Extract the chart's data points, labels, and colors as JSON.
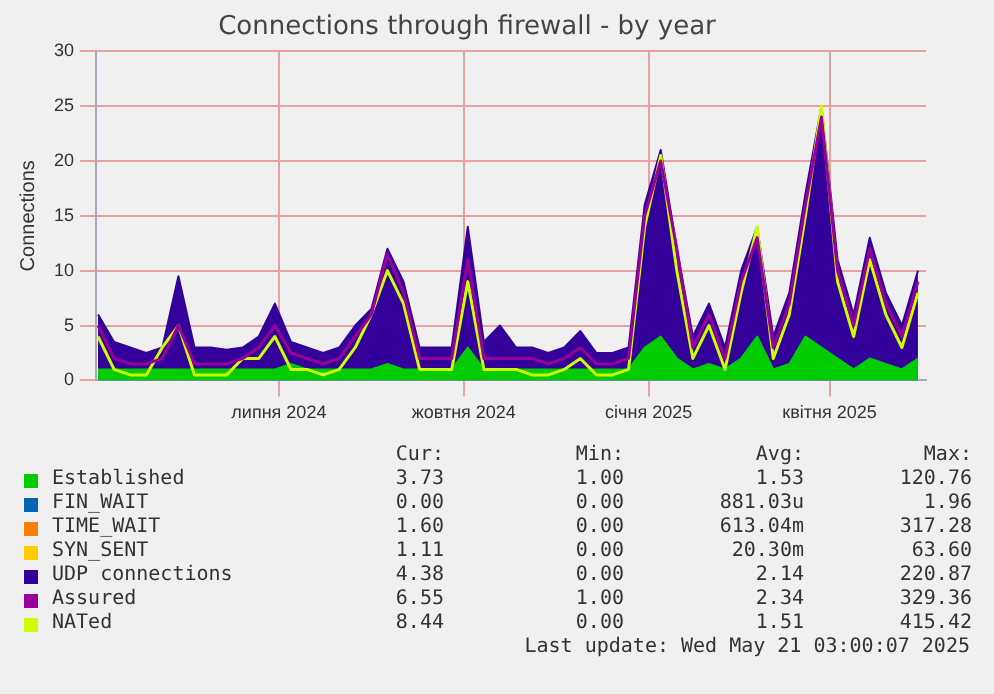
{
  "chart_data": {
    "type": "area",
    "title": "Connections through firewall - by year",
    "ylabel": "Connections",
    "x": [
      "2024-04-02",
      "2024-04-10",
      "2024-04-18",
      "2024-04-26",
      "2024-05-04",
      "2024-05-12",
      "2024-05-20",
      "2024-05-28",
      "2024-06-05",
      "2024-06-13",
      "2024-06-21",
      "2024-06-29",
      "2024-07-07",
      "2024-07-15",
      "2024-07-23",
      "2024-07-31",
      "2024-08-08",
      "2024-08-16",
      "2024-08-24",
      "2024-09-01",
      "2024-09-09",
      "2024-09-17",
      "2024-09-25",
      "2024-10-03",
      "2024-10-11",
      "2024-10-19",
      "2024-10-27",
      "2024-11-04",
      "2024-11-12",
      "2024-11-20",
      "2024-11-28",
      "2024-12-06",
      "2024-12-14",
      "2024-12-22",
      "2024-12-30",
      "2025-01-07",
      "2025-01-15",
      "2025-01-23",
      "2025-01-31",
      "2025-02-08",
      "2025-02-16",
      "2025-02-24",
      "2025-03-04",
      "2025-03-12",
      "2025-03-20",
      "2025-03-28",
      "2025-04-05",
      "2025-04-13",
      "2025-04-21",
      "2025-04-29",
      "2025-05-07",
      "2025-05-15"
    ],
    "series": [
      {
        "name": "Established",
        "color": "#00cc00",
        "values": [
          1,
          1,
          1,
          1,
          1,
          1,
          1,
          1,
          1,
          1,
          1,
          1,
          1.5,
          1,
          1,
          1,
          1,
          1,
          1.5,
          1,
          1,
          1,
          1,
          3,
          1,
          1,
          1,
          1,
          1,
          1,
          1,
          1,
          1,
          1,
          3,
          4,
          2,
          1,
          1.5,
          1,
          2,
          4,
          1,
          1.5,
          4,
          3,
          2,
          1,
          2,
          1.5,
          1,
          2
        ]
      },
      {
        "name": "FIN_WAIT",
        "color": "#0066b3",
        "values": [
          null,
          null,
          null,
          null,
          null,
          null,
          null,
          null,
          null,
          null,
          null,
          null,
          null,
          null,
          null,
          null,
          null,
          null,
          null,
          null,
          null,
          null,
          null,
          null,
          null,
          null,
          null,
          null,
          null,
          null,
          null,
          null,
          null,
          null,
          null,
          null,
          null,
          null,
          null,
          null,
          null,
          null,
          null,
          null,
          null,
          null,
          null,
          null,
          null,
          null,
          null,
          null
        ]
      },
      {
        "name": "TIME_WAIT",
        "color": "#ff8000",
        "values": [
          null,
          null,
          null,
          null,
          null,
          null,
          null,
          null,
          null,
          null,
          null,
          null,
          null,
          null,
          null,
          null,
          null,
          null,
          null,
          null,
          null,
          null,
          null,
          null,
          null,
          null,
          null,
          null,
          null,
          null,
          null,
          null,
          null,
          null,
          null,
          null,
          null,
          null,
          null,
          null,
          null,
          null,
          null,
          null,
          null,
          null,
          null,
          null,
          null,
          null,
          null,
          null
        ]
      },
      {
        "name": "SYN_SENT",
        "color": "#ffcc00",
        "values": [
          null,
          null,
          null,
          null,
          null,
          null,
          null,
          null,
          null,
          null,
          null,
          null,
          null,
          null,
          null,
          null,
          null,
          null,
          null,
          null,
          null,
          null,
          null,
          null,
          null,
          null,
          null,
          null,
          null,
          null,
          null,
          null,
          null,
          null,
          null,
          null,
          null,
          null,
          null,
          null,
          null,
          null,
          null,
          null,
          null,
          null,
          null,
          null,
          null,
          null,
          null,
          null
        ]
      },
      {
        "name": "UDP connections",
        "color": "#330099",
        "values": [
          6,
          3.5,
          3,
          2.5,
          3,
          9.5,
          3,
          3,
          2.8,
          3,
          4,
          7,
          3.5,
          3,
          2.5,
          3,
          5,
          6.5,
          12,
          9,
          3,
          3,
          3,
          14,
          3.5,
          5,
          3,
          3,
          2.5,
          3,
          4.5,
          2.5,
          2.5,
          3,
          16,
          21,
          12,
          4,
          7,
          3,
          10,
          14,
          4,
          8,
          17,
          25,
          11,
          6,
          13,
          8,
          5,
          10
        ]
      },
      {
        "name": "Assured",
        "color": "#990099",
        "type": "line",
        "values": [
          5,
          2,
          1.5,
          1.5,
          2,
          5,
          1.5,
          1.5,
          1.5,
          2,
          3,
          5,
          2.5,
          2,
          1.5,
          2,
          4,
          6,
          11.5,
          8,
          2,
          2,
          2,
          11,
          2,
          2,
          2,
          2,
          1.5,
          2,
          3,
          1.5,
          1.5,
          2,
          15,
          20,
          12,
          3,
          6,
          2,
          9,
          13,
          3,
          7,
          16,
          24,
          10,
          5,
          12,
          7,
          4,
          9
        ]
      },
      {
        "name": "NATed",
        "color": "#ccff00",
        "type": "line",
        "values": [
          4,
          1,
          0.5,
          0.5,
          3,
          5,
          0.5,
          0.5,
          0.5,
          2,
          2,
          4,
          1,
          1,
          0.5,
          1,
          3,
          6,
          10,
          7,
          1,
          1,
          1,
          9,
          1,
          1,
          1,
          0.5,
          0.5,
          1,
          2,
          0.5,
          0.5,
          1,
          14,
          20.5,
          10,
          2,
          5,
          1,
          8,
          14,
          2,
          6,
          15,
          25,
          9,
          4,
          11,
          6,
          3,
          8
        ]
      }
    ],
    "xlim": [
      "2024-04-01",
      "2025-05-19"
    ],
    "xticks": [
      {
        "value": "2024-07-01",
        "label": "липня 2024"
      },
      {
        "value": "2024-10-01",
        "label": "жовтня 2024"
      },
      {
        "value": "2025-01-01",
        "label": "січня 2025"
      },
      {
        "value": "2025-04-01",
        "label": "квітня 2025"
      }
    ],
    "ylim": [
      0,
      30
    ],
    "yticks": [
      0,
      5,
      10,
      15,
      20,
      25,
      30
    ],
    "grid": true,
    "legend": "bottom",
    "annotations": [
      "Cur:",
      "Min:",
      "Avg:",
      "Max:",
      "3.73",
      "1.00",
      "1.53",
      "120.76",
      "0.00",
      "0.00",
      "881.03u",
      "1.96",
      "1.60",
      "0.00",
      "613.04m",
      "317.28",
      "1.11",
      "0.00",
      "20.30m",
      "63.60",
      "4.38",
      "0.00",
      "2.14",
      "220.87",
      "6.55",
      "1.00",
      "2.34",
      "329.36",
      "8.44",
      "0.00",
      "1.51",
      "415.42",
      "Last update: Wed May 21 03:00:07 2025"
    ]
  }
}
